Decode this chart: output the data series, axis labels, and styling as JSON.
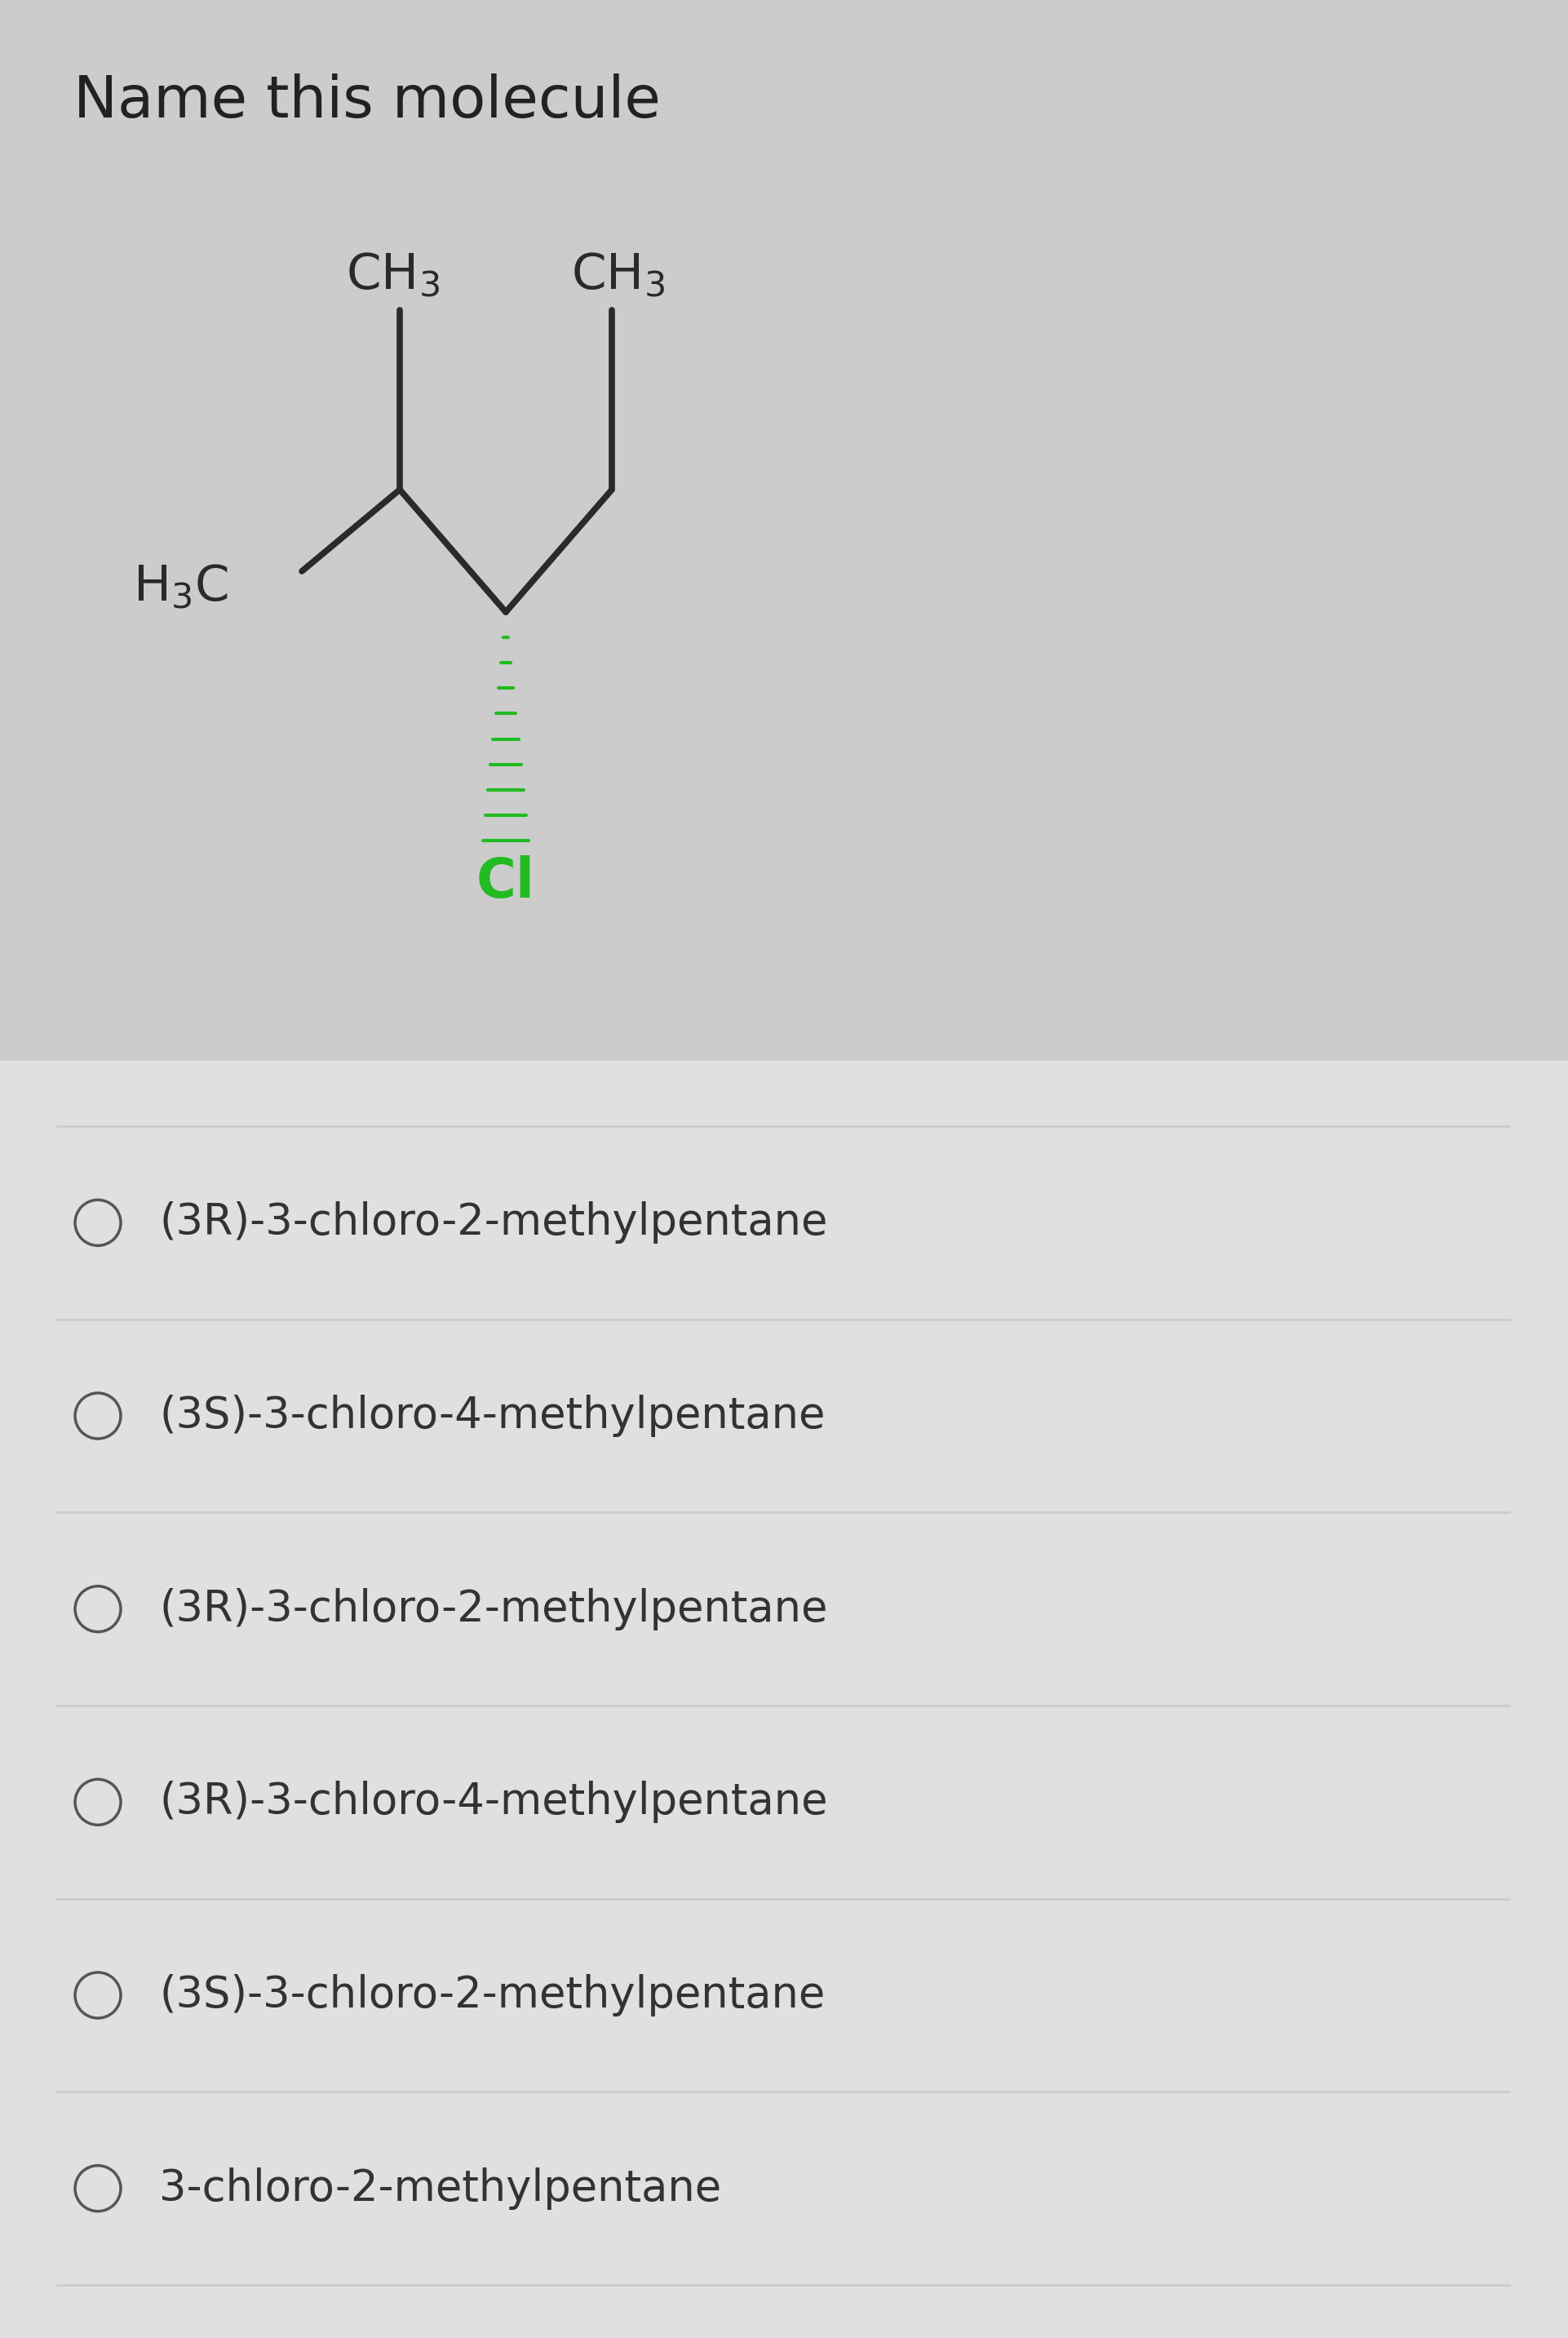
{
  "title": "Name this molecule",
  "bg_color_top": "#cccccc",
  "bg_color_bottom": "#e8e8e8",
  "title_color": "#222222",
  "title_fontsize": 52,
  "bond_color": "#2a2a2a",
  "green_color": "#22bb22",
  "options": [
    "(3R)-3-chloro-2-methylpentane",
    "(3S)-3-chloro-4-methylpentane",
    "(3R)-3-chloro-2-methylpentane",
    "(3R)-3-chloro-4-methylpentane",
    "(3S)-3-chloro-2-methylpentane",
    "3-chloro-2-methylpentane"
  ],
  "option_fontsize": 38,
  "option_color": "#333333",
  "circle_color": "#555555",
  "divider_color": "#cccccc",
  "mol_label_fontsize": 44,
  "mol_subscript_fontsize": 36
}
